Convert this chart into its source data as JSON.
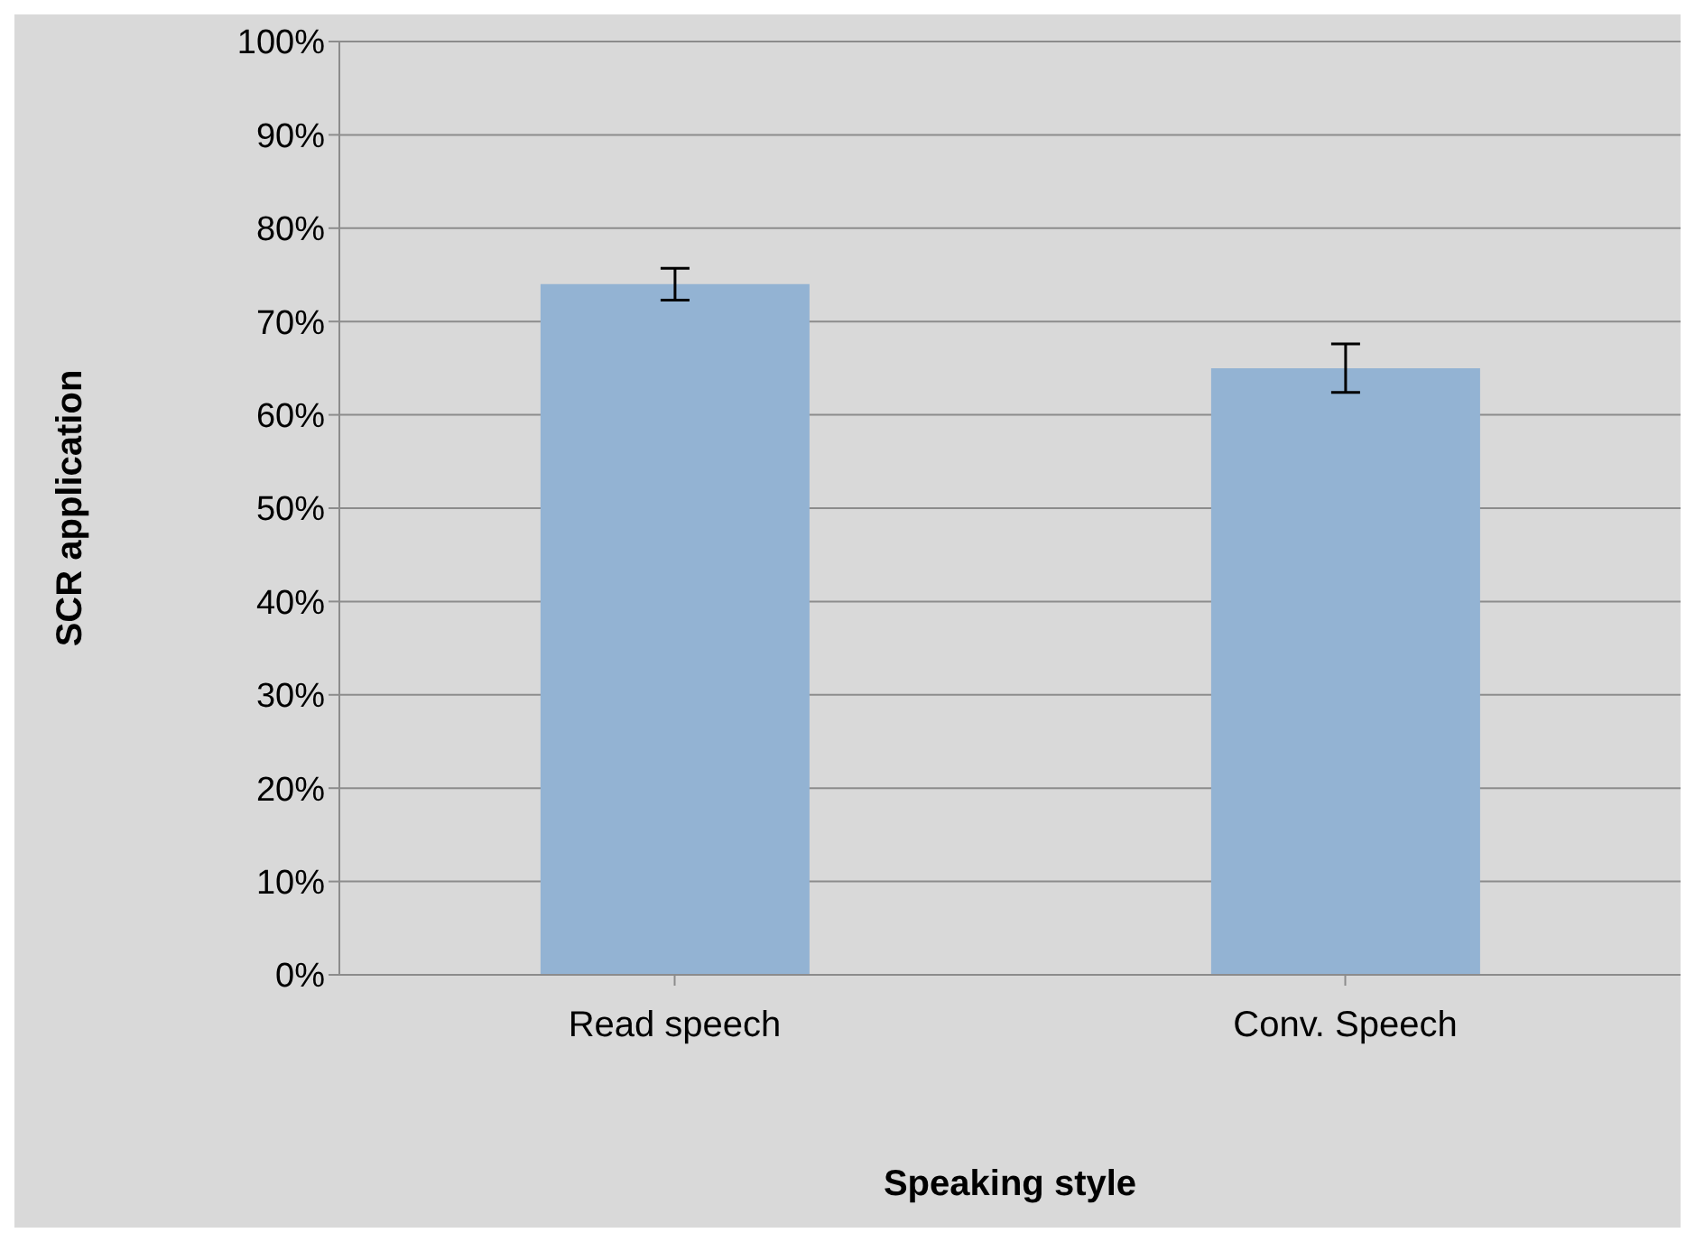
{
  "chart_data": {
    "type": "bar",
    "xlabel": "Speaking style",
    "ylabel": "SCR application",
    "categories": [
      "Read speech",
      "Conv. Speech"
    ],
    "values": [
      74,
      65
    ],
    "errors": [
      1.7,
      2.6
    ],
    "color": "#93b3d3",
    "ylim": [
      0,
      100
    ],
    "yticks": [
      {
        "value": 0,
        "label": "0%"
      },
      {
        "value": 10,
        "label": "10%"
      },
      {
        "value": 20,
        "label": "20%"
      },
      {
        "value": 30,
        "label": "30%"
      },
      {
        "value": 40,
        "label": "40%"
      },
      {
        "value": 50,
        "label": "50%"
      },
      {
        "value": 60,
        "label": "60%"
      },
      {
        "value": 70,
        "label": "70%"
      },
      {
        "value": 80,
        "label": "80%"
      },
      {
        "value": 90,
        "label": "90%"
      },
      {
        "value": 100,
        "label": "100%"
      }
    ],
    "grid": "y",
    "legend": false
  }
}
